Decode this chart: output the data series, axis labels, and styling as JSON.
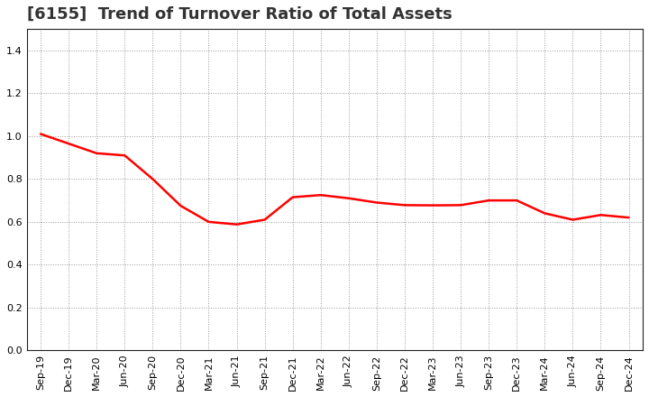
{
  "title": "[6155]  Trend of Turnover Ratio of Total Assets",
  "x_labels": [
    "Sep-19",
    "Dec-19",
    "Mar-20",
    "Jun-20",
    "Sep-20",
    "Dec-20",
    "Mar-21",
    "Jun-21",
    "Sep-21",
    "Dec-21",
    "Mar-22",
    "Jun-22",
    "Sep-22",
    "Dec-22",
    "Mar-23",
    "Jun-23",
    "Sep-23",
    "Dec-23",
    "Mar-24",
    "Jun-24",
    "Sep-24",
    "Dec-24"
  ],
  "y_values": [
    1.01,
    0.965,
    0.92,
    0.91,
    0.8,
    0.675,
    0.6,
    0.588,
    0.61,
    0.715,
    0.725,
    0.71,
    0.69,
    0.678,
    0.677,
    0.678,
    0.7,
    0.7,
    0.64,
    0.61,
    0.632,
    0.62
  ],
  "line_color": "#FF0000",
  "line_width": 1.8,
  "ylim": [
    0.0,
    1.5
  ],
  "yticks": [
    0.0,
    0.2,
    0.4,
    0.6,
    0.8,
    1.0,
    1.2,
    1.4
  ],
  "grid_color": "#999999",
  "background_color": "#ffffff",
  "title_fontsize": 13,
  "tick_fontsize": 8,
  "title_color": "#333333"
}
